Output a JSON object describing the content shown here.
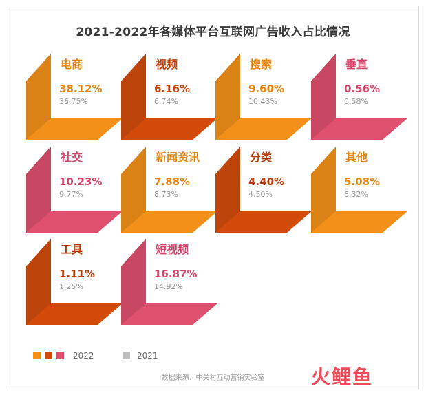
{
  "chart_data": {
    "type": "table",
    "title": "2021-2022年各媒体平台互联网广告收入占比情况",
    "series_names": [
      "2022",
      "2021"
    ],
    "categories": [
      "电商",
      "视频",
      "搜索",
      "垂直",
      "社交",
      "新闻资讯",
      "分类",
      "其他",
      "工具",
      "短视频"
    ],
    "values_2022": [
      "38.12%",
      "6.16%",
      "9.60%",
      "0.56%",
      "10.23%",
      "7.88%",
      "4.40%",
      "5.08%",
      "1.11%",
      "16.87%"
    ],
    "values_2021": [
      "36.75%",
      "6.74%",
      "10.43%",
      "0.58%",
      "9.77%",
      "8.73%",
      "4.50%",
      "6.32%",
      "1.25%",
      "14.92%"
    ],
    "tile_colors": [
      "#f39019",
      "#d24b0b",
      "#f39019",
      "#de506e",
      "#de506e",
      "#f39019",
      "#d24b0b",
      "#f39019",
      "#d24b0b",
      "#de506e"
    ],
    "label_colors": [
      "#e8850f",
      "#c8420a",
      "#e8850f",
      "#d6456a",
      "#d6456a",
      "#e8850f",
      "#b83a08",
      "#e8850f",
      "#b83a08",
      "#d6456a"
    ],
    "legend": {
      "label_2022": "2022",
      "label_2021": "2021",
      "colors_2022": [
        "#f39019",
        "#d24b0b",
        "#de506e"
      ],
      "color_2021": "#bfbfbf"
    },
    "source": "数据来源：中关村互动营销实验室",
    "watermark": "火鲤鱼"
  }
}
